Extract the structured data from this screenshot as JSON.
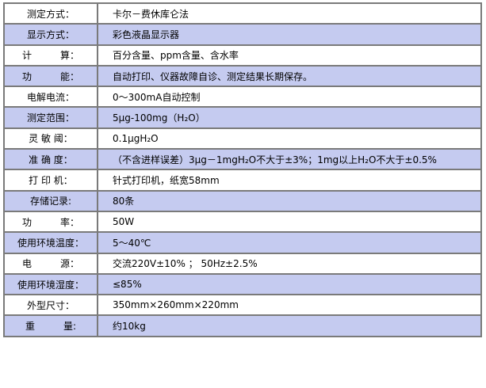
{
  "colors": {
    "alt_row": "#c5cbf0",
    "border": "#7a7a7a"
  },
  "specs": [
    {
      "label": "测定方式：",
      "value": "卡尔－费休库仑法"
    },
    {
      "label": "显示方式：",
      "value": "彩色液晶显示器"
    },
    {
      "label": "计　　　算：",
      "value": "百分含量、ppm含量、含水率"
    },
    {
      "label": "功　　　能：",
      "value": "自动打印、仪器故障自诊、测定结果长期保存。"
    },
    {
      "label": "电解电流：",
      "value": "0～300mA自动控制"
    },
    {
      "label": "测定范围：",
      "value": "5μg-100mg（H₂O）"
    },
    {
      "label": "灵 敏 阈：",
      "value": "0.1μgH₂O"
    },
    {
      "label": "准 确 度：",
      "value": "（不含进样误差）3μg－1mgH₂O不大于±3%；1mg以上H₂O不大于±0.5%"
    },
    {
      "label": "打 印 机：",
      "value": "针式打印机，纸宽58mm"
    },
    {
      "label": "存储记录:",
      "value": "80条"
    },
    {
      "label": "功　　　率：",
      "value": "50W"
    },
    {
      "label": "使用环境温度：",
      "value": "5～40℃"
    },
    {
      "label": "电　　　源：",
      "value": "交流220V±10% ； 50Hz±2.5%"
    },
    {
      "label": "使用环境湿度：",
      "value": "≤85%"
    },
    {
      "label": "外型尺寸：",
      "value": "350mm×260mm×220mm"
    },
    {
      "label": "重　　　量:",
      "value": "约10kg"
    }
  ]
}
